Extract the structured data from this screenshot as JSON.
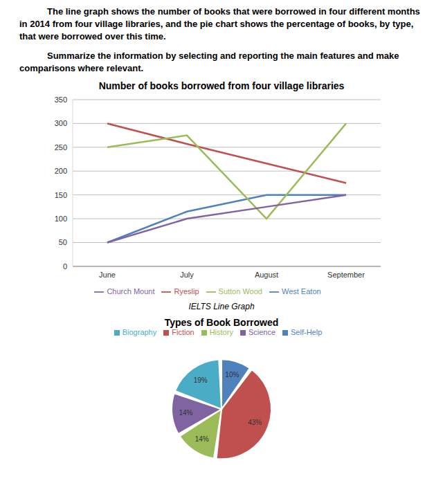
{
  "header": {
    "paragraphs": [
      "The line graph shows the number of books that were borrowed in four different months in 2014 from four village libraries, and the pie chart shows the percentage of books, by type, that were borrowed over this time.",
      "Summarize the information by selecting and reporting the main features and make comparisons where relevant."
    ]
  },
  "caption": "IELTS Line Graph",
  "chart_data": [
    {
      "type": "line",
      "title": "Number of books borrowed from four village libraries",
      "categories": [
        "June",
        "July",
        "August",
        "September"
      ],
      "series": [
        {
          "name": "West Eaton",
          "color": "#4f81bd",
          "values": [
            50,
            115,
            150,
            150
          ]
        },
        {
          "name": "Ryeslip",
          "color": "#c0504d",
          "values": [
            300,
            257,
            216,
            175
          ]
        },
        {
          "name": "Sutton Wood",
          "color": "#9bbb59",
          "values": [
            250,
            275,
            100,
            300
          ]
        },
        {
          "name": "Church Mount",
          "color": "#8064a2",
          "values": [
            50,
            100,
            125,
            150
          ]
        }
      ],
      "ylim": [
        0,
        350
      ],
      "yticks": [
        0,
        50,
        100,
        150,
        200,
        250,
        300,
        350
      ],
      "grid": true,
      "legend": "bottom",
      "marker": "none"
    },
    {
      "type": "pie",
      "title": "Types of Book Borrowed",
      "categories": [
        "Self-Help",
        "Fiction",
        "History",
        "Science",
        "Biography"
      ],
      "values": [
        10,
        43,
        14,
        14,
        19
      ],
      "value_labels": [
        "10%",
        "43%",
        "14%",
        "14%",
        "19%"
      ],
      "colors": [
        "#4f81bd",
        "#c0504d",
        "#9bbb59",
        "#8064a2",
        "#4bacc6"
      ],
      "data_labels": true,
      "legend": "top"
    }
  ]
}
